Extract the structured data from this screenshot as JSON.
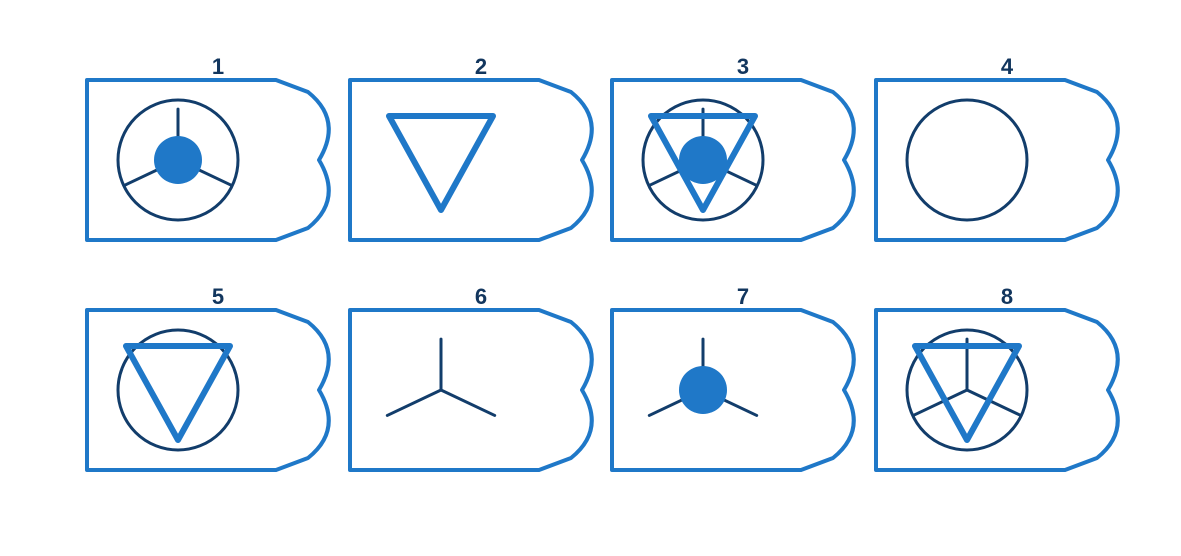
{
  "colors": {
    "frame": "#1f78c8",
    "line": "#123d6b",
    "fill": "#1f78c8",
    "label": "#12365e",
    "background": "#ffffff"
  },
  "tiles": [
    {
      "number": "1",
      "elements": [
        "circle",
        "y-lines",
        "dot"
      ]
    },
    {
      "number": "2",
      "elements": [
        "triangle"
      ]
    },
    {
      "number": "3",
      "elements": [
        "circle",
        "y-lines",
        "dot",
        "triangle"
      ]
    },
    {
      "number": "4",
      "elements": [
        "circle"
      ]
    },
    {
      "number": "5",
      "elements": [
        "circle",
        "triangle"
      ]
    },
    {
      "number": "6",
      "elements": [
        "y-lines"
      ]
    },
    {
      "number": "7",
      "elements": [
        "y-lines",
        "dot"
      ]
    },
    {
      "number": "8",
      "elements": [
        "circle",
        "y-lines",
        "triangle"
      ]
    }
  ]
}
